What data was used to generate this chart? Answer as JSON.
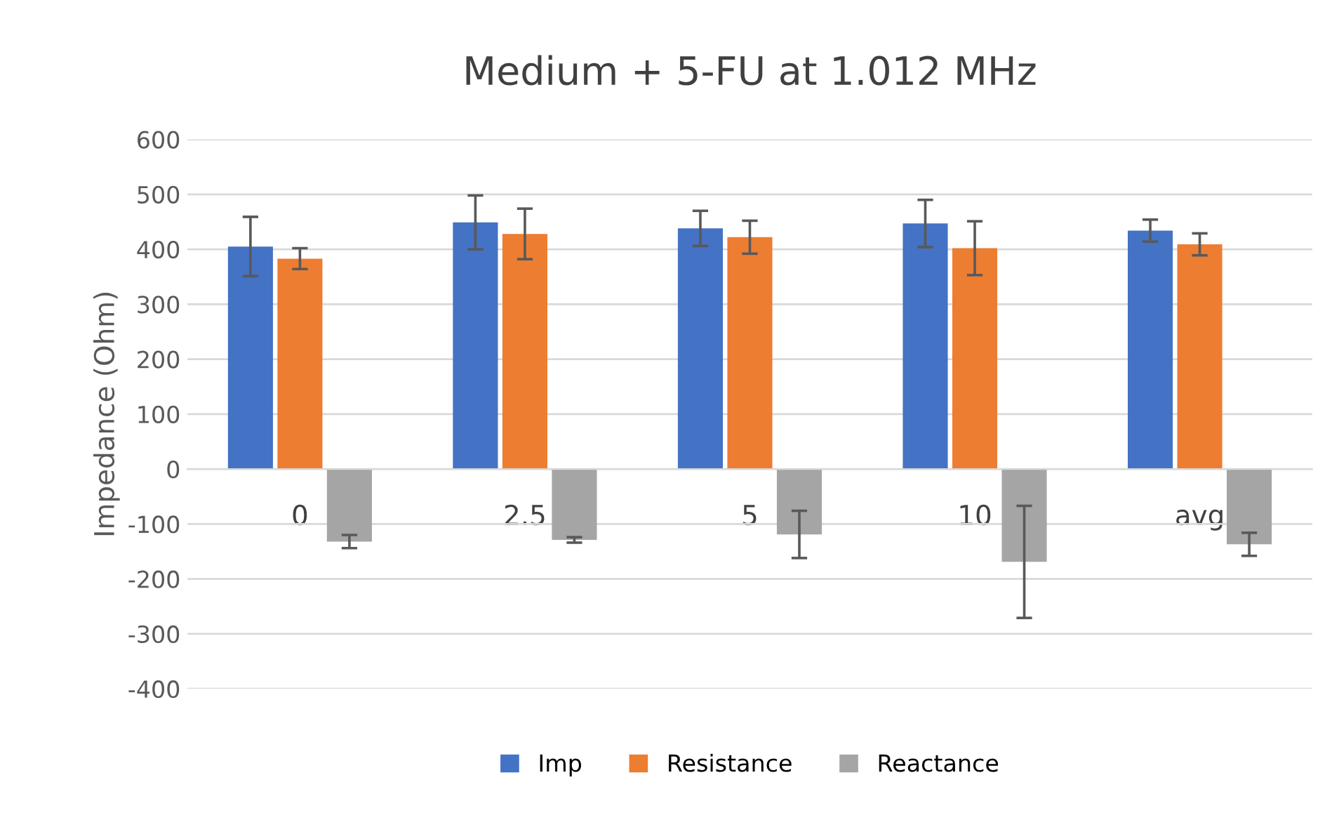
{
  "chart_data": {
    "type": "bar",
    "title": "Medium + 5-FU at 1.012 MHz",
    "ylabel": "Impedance (Ohm)",
    "categories": [
      "0",
      "2.5",
      "5",
      "10",
      "avg"
    ],
    "series": [
      {
        "name": "Imp",
        "color": "#4472c4",
        "values": [
          405,
          449,
          438,
          447,
          434
        ],
        "errors": [
          54,
          49,
          32,
          43,
          20
        ]
      },
      {
        "name": "Resistance",
        "color": "#ed7d31",
        "values": [
          383,
          428,
          422,
          402,
          409
        ],
        "errors": [
          19,
          46,
          30,
          49,
          20
        ]
      },
      {
        "name": "Reactance",
        "color": "#a5a5a5",
        "values": [
          -132,
          -129,
          -119,
          -169,
          -137
        ],
        "errors": [
          12,
          5,
          43,
          102,
          21
        ]
      }
    ],
    "ylim": [
      -400,
      600
    ],
    "yticks": [
      -400,
      -300,
      -200,
      -100,
      0,
      100,
      200,
      300,
      400,
      500,
      600
    ],
    "grid": "y",
    "legend": "bottom"
  }
}
